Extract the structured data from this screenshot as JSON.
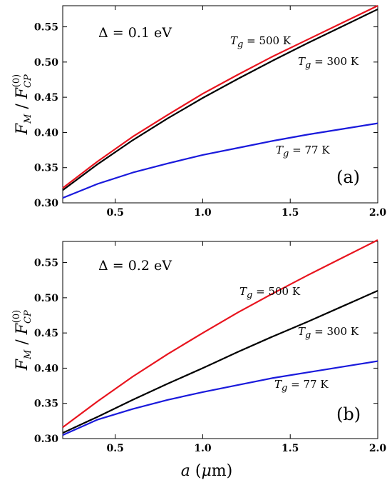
{
  "chart_data": [
    {
      "type": "line",
      "panel_label": "(a)",
      "annotation": "Δ = 0.1 eV",
      "ylabel": "F_M / F_CP^(0)",
      "xlim": [
        0.2,
        2.0
      ],
      "ylim": [
        0.3,
        0.58
      ],
      "xticks": [
        "0.5",
        "1.0",
        "1.5",
        "2.0"
      ],
      "yticks": [
        "0.30",
        "0.35",
        "0.40",
        "0.45",
        "0.50",
        "0.55"
      ],
      "grid": false,
      "series": [
        {
          "name": "T_g = 500 K",
          "label_temp": "500",
          "color": "#e8141e",
          "x": [
            0.2,
            0.4,
            0.6,
            0.8,
            1.0,
            1.2,
            1.4,
            1.6,
            1.8,
            2.0
          ],
          "y": [
            0.321,
            0.359,
            0.394,
            0.425,
            0.455,
            0.482,
            0.508,
            0.532,
            0.556,
            0.58
          ]
        },
        {
          "name": "T_g = 300 K",
          "label_temp": "300",
          "color": "#000000",
          "x": [
            0.2,
            0.4,
            0.6,
            0.8,
            1.0,
            1.2,
            1.4,
            1.6,
            1.8,
            2.0
          ],
          "y": [
            0.318,
            0.355,
            0.389,
            0.42,
            0.449,
            0.476,
            0.502,
            0.527,
            0.551,
            0.575
          ]
        },
        {
          "name": "T_g = 77 K",
          "label_temp": "77",
          "color": "#1a1adc",
          "x": [
            0.2,
            0.4,
            0.6,
            0.8,
            1.0,
            1.2,
            1.4,
            1.6,
            1.8,
            2.0
          ],
          "y": [
            0.307,
            0.327,
            0.343,
            0.356,
            0.368,
            0.378,
            0.388,
            0.397,
            0.405,
            0.413
          ]
        }
      ]
    },
    {
      "type": "line",
      "panel_label": "(b)",
      "annotation": "Δ = 0.2 eV",
      "ylabel": "F_M / F_CP^(0)",
      "xlabel": "a (μm)",
      "xlim": [
        0.2,
        2.0
      ],
      "ylim": [
        0.3,
        0.58
      ],
      "xticks": [
        "0.5",
        "1.0",
        "1.5",
        "2.0"
      ],
      "yticks": [
        "0.30",
        "0.35",
        "0.40",
        "0.45",
        "0.50",
        "0.55"
      ],
      "grid": false,
      "series": [
        {
          "name": "T_g = 500 K",
          "label_temp": "500",
          "color": "#e8141e",
          "x": [
            0.2,
            0.4,
            0.6,
            0.8,
            1.0,
            1.2,
            1.4,
            1.6,
            1.8,
            2.0
          ],
          "y": [
            0.316,
            0.353,
            0.388,
            0.42,
            0.45,
            0.479,
            0.506,
            0.532,
            0.557,
            0.582
          ]
        },
        {
          "name": "T_g = 300 K",
          "label_temp": "300",
          "color": "#000000",
          "x": [
            0.2,
            0.4,
            0.6,
            0.8,
            1.0,
            1.2,
            1.4,
            1.6,
            1.8,
            2.0
          ],
          "y": [
            0.308,
            0.331,
            0.355,
            0.378,
            0.4,
            0.423,
            0.445,
            0.466,
            0.488,
            0.51
          ]
        },
        {
          "name": "T_g = 77 K",
          "label_temp": "77",
          "color": "#1a1adc",
          "x": [
            0.2,
            0.4,
            0.6,
            0.8,
            1.0,
            1.2,
            1.4,
            1.6,
            1.8,
            2.0
          ],
          "y": [
            0.305,
            0.327,
            0.342,
            0.355,
            0.366,
            0.376,
            0.386,
            0.394,
            0.402,
            0.41
          ]
        }
      ]
    }
  ]
}
